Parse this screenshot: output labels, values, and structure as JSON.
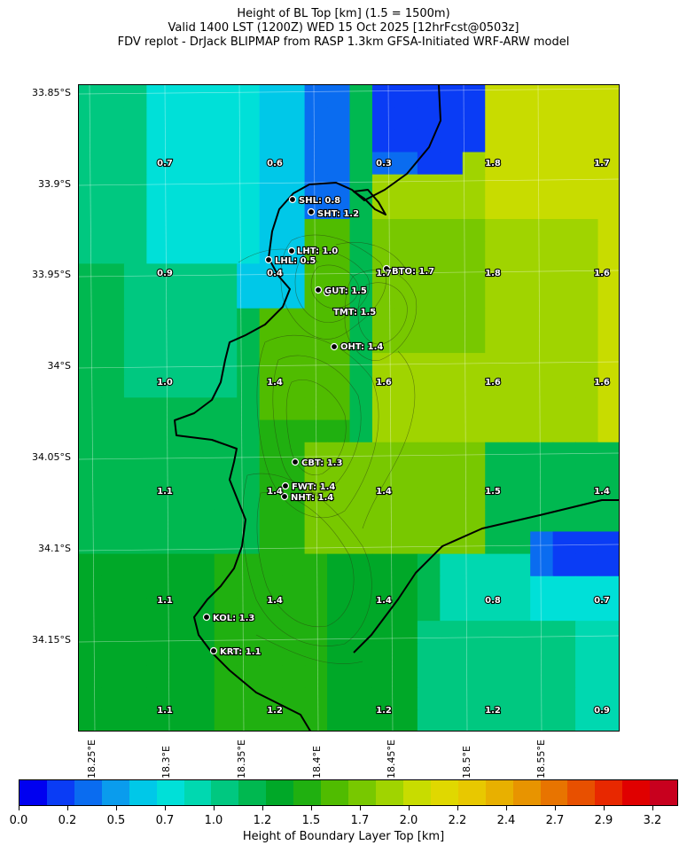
{
  "title": {
    "line1": "Height of BL Top [km] (1.5 = 1500m)",
    "line2": "Valid 1400 LST (1200Z) WED 15 Oct 2025 [12hrFcst@0503z]",
    "line3": "FDV replot - DrJack BLIPMAP from RASP 1.3km GFSA-Initiated WRF-ARW model"
  },
  "lat_labels": [
    "33.85°S",
    "33.9°S",
    "33.95°S",
    "34°S",
    "34.05°S",
    "34.1°S",
    "34.15°S"
  ],
  "lon_labels": [
    "18.25°E",
    "18.3°E",
    "18.35°E",
    "18.4°E",
    "18.45°E",
    "18.5°E",
    "18.55°E"
  ],
  "grid_values": [
    [
      "0.7",
      "0.6",
      "0.3",
      "1.8",
      "1.7"
    ],
    [
      "0.9",
      "0.4",
      "1.7",
      "1.8",
      "1.6"
    ],
    [
      "1.0",
      "1.4",
      "1.6",
      "1.6",
      "1.6"
    ],
    [
      "1.1",
      "1.4",
      "1.4",
      "1.5",
      "1.4"
    ],
    [
      "1.1",
      "1.4",
      "1.4",
      "0.8",
      "0.7"
    ],
    [
      "1.1",
      "1.2",
      "1.2",
      "1.2",
      "0.9"
    ]
  ],
  "stations": [
    {
      "label": "SHL: 0.8"
    },
    {
      "label": "SHT: 1.2"
    },
    {
      "label": "LHT: 1.0"
    },
    {
      "label": "LHL: 0.5"
    },
    {
      "label": "BTO: 1.7"
    },
    {
      "label": "GUT: 1.5"
    },
    {
      "label": "TMT: 1.5"
    },
    {
      "label": "OHT: 1.4"
    },
    {
      "label": "CBT: 1.3"
    },
    {
      "label": "FWT: 1.4"
    },
    {
      "label": "NHT: 1.4"
    },
    {
      "label": "KOL: 1.3"
    },
    {
      "label": "KRT: 1.1"
    }
  ],
  "colorbar": {
    "label": "Height of Boundary Layer Top [km]",
    "ticks": [
      "0.0",
      "0.2",
      "0.5",
      "0.7",
      "1.0",
      "1.2",
      "1.5",
      "1.7",
      "2.0",
      "2.2",
      "2.4",
      "2.7",
      "2.9",
      "3.2"
    ],
    "colors": [
      "#0000f0",
      "#0a3cf5",
      "#0a6cf0",
      "#0a9ced",
      "#00c8e8",
      "#00e0d8",
      "#00d8b0",
      "#00c880",
      "#00b850",
      "#00a828",
      "#20b010",
      "#50bc00",
      "#78c800",
      "#a0d400",
      "#c8dc00",
      "#e0d800",
      "#e8c800",
      "#e8b000",
      "#e89400",
      "#e87400",
      "#e85000",
      "#e82800",
      "#e00000",
      "#c8001e"
    ]
  }
}
